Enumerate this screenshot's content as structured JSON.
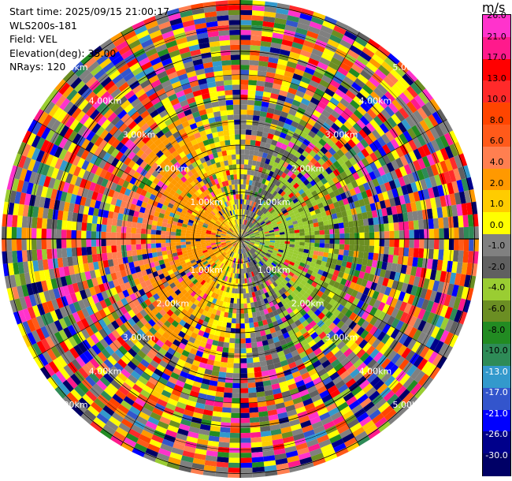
{
  "info": {
    "start_time": "Start time: 2025/09/15 21:00:17",
    "instrument": "WLS200s-181",
    "field": "Field: VEL",
    "elevation": "Elevation(deg): 35.00",
    "nrays": "NRays: 120"
  },
  "colorbar": {
    "unit": "m/s",
    "labels": [
      "26.0",
      "21.0",
      "17.0",
      "13.0",
      "10.0",
      "8.0",
      "6.0",
      "4.0",
      "2.0",
      "1.0",
      "0.0",
      "-1.0",
      "-2.0",
      "-4.0",
      "-6.0",
      "-8.0",
      "-10.0",
      "-13.0",
      "-17.0",
      "-21.0",
      "-26.0",
      "-30.0"
    ],
    "colors": [
      "#ff33cc",
      "#ff1a8c",
      "#ff0000",
      "#ff2a2a",
      "#ff4500",
      "#ff5a1a",
      "#ff7f50",
      "#ff9900",
      "#ffcc00",
      "#ffff00",
      "#808080",
      "#606060",
      "#9acd32",
      "#6b8e23",
      "#228b22",
      "#2e8b57",
      "#3399cc",
      "#3355cc",
      "#0000ff",
      "#00008b",
      "#000066"
    ]
  },
  "range_rings": {
    "labels": [
      "1.00km",
      "2.00km",
      "3.00km",
      "4.00km",
      "5.00km"
    ]
  },
  "chart_data": {
    "type": "heatmap",
    "title": "",
    "field": "VEL",
    "units": "m/s",
    "nrays": 120,
    "elevation_deg": 35.0,
    "range_rings_km": [
      1,
      2,
      3,
      4,
      5
    ],
    "color_scale_bounds": [
      26.0,
      21.0,
      17.0,
      13.0,
      10.0,
      8.0,
      6.0,
      4.0,
      2.0,
      1.0,
      0.0,
      -1.0,
      -2.0,
      -4.0,
      -6.0,
      -8.0,
      -10.0,
      -13.0,
      -17.0,
      -21.0,
      -26.0,
      -30.0
    ]
  }
}
